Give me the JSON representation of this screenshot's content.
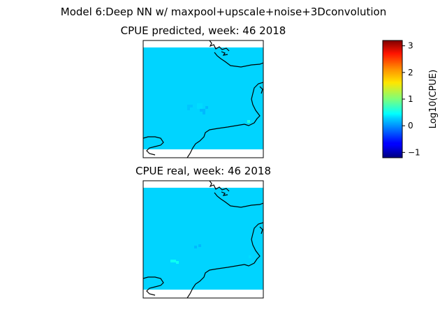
{
  "figure": {
    "suptitle": "Model 6:Deep NN w/ maxpool+upscale+noise+3Dconvolution"
  },
  "chart_data": [
    {
      "type": "heatmap",
      "title": "CPUE predicted, week: 46 2018",
      "value_range": [
        -1.2,
        3.2
      ],
      "background_value": 0,
      "anomalies": [
        {
          "value": 0.3,
          "cells": 4
        },
        {
          "value": 0.2,
          "cells": 3
        },
        {
          "value": 0.15,
          "cells": 4
        },
        {
          "value": 0.6,
          "cells": 1
        }
      ]
    },
    {
      "type": "heatmap",
      "title": "CPUE real, week: 46 2018",
      "value_range": [
        -1.2,
        3.2
      ],
      "background_value": 0,
      "anomalies": [
        {
          "value": 0.5,
          "cells": 3
        },
        {
          "value": 0.15,
          "cells": 2
        },
        {
          "value": 0.3,
          "cells": 1
        }
      ]
    }
  ],
  "colorbar": {
    "label": "Log10(CPUE)",
    "ticks": [
      3,
      2,
      1,
      0,
      -1
    ],
    "range": [
      -1.2,
      3.2
    ],
    "colormap": "jet"
  },
  "colors": {
    "ocean_zero": "#00d4ff",
    "coast": "#000000"
  }
}
